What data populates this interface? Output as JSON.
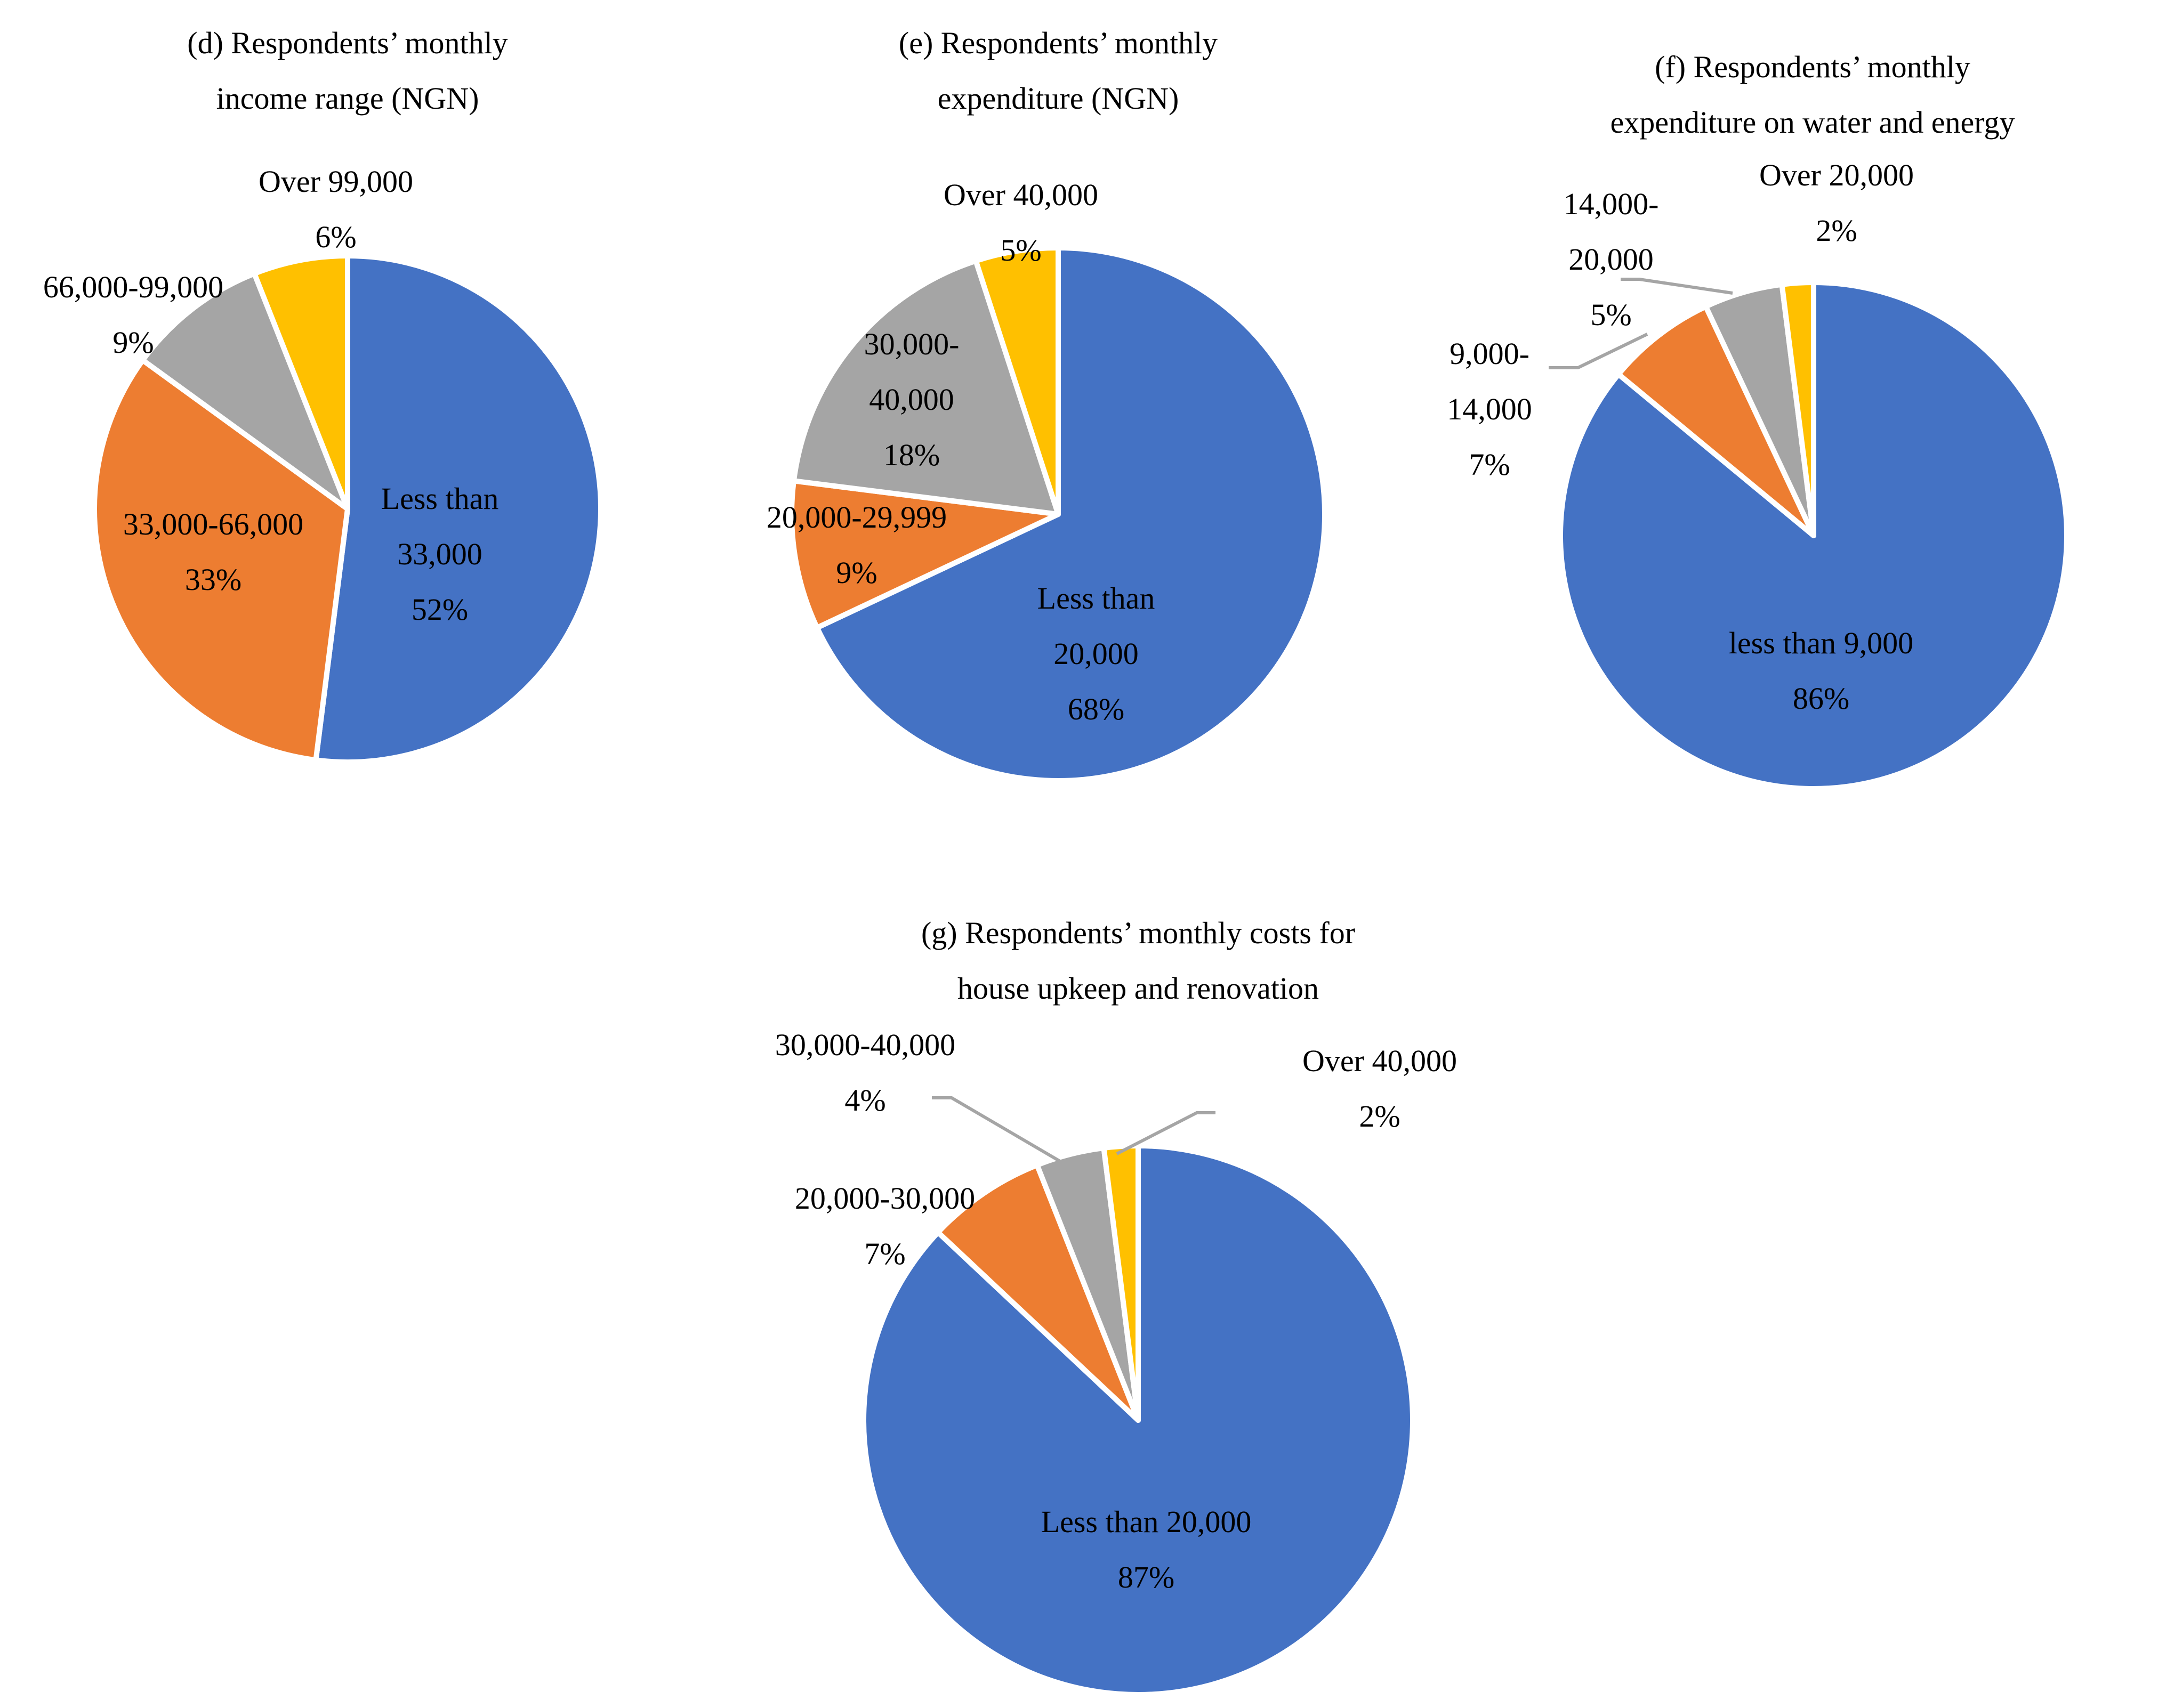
{
  "chart_data": [
    {
      "id": "d",
      "type": "pie",
      "title_lines": [
        "(d) Respondents’ monthly",
        "income range (NGN)"
      ],
      "slices": [
        {
          "label_lines": [
            "Less than",
            "33,000"
          ],
          "pct_label": "52%",
          "value": 52,
          "color": "#4472C4"
        },
        {
          "label_lines": [
            "33,000-66,000"
          ],
          "pct_label": "33%",
          "value": 33,
          "color": "#ED7D31"
        },
        {
          "label_lines": [
            "66,000-99,000"
          ],
          "pct_label": "9%",
          "value": 9,
          "color": "#A5A5A5"
        },
        {
          "label_lines": [
            "Over 99,000"
          ],
          "pct_label": "6%",
          "value": 6,
          "color": "#FFC000"
        }
      ]
    },
    {
      "id": "e",
      "type": "pie",
      "title_lines": [
        "(e) Respondents’ monthly",
        "expenditure (NGN)"
      ],
      "slices": [
        {
          "label_lines": [
            "Less than",
            "20,000"
          ],
          "pct_label": "68%",
          "value": 68,
          "color": "#4472C4"
        },
        {
          "label_lines": [
            "20,000-29,999"
          ],
          "pct_label": "9%",
          "value": 9,
          "color": "#ED7D31"
        },
        {
          "label_lines": [
            "30,000-",
            "40,000"
          ],
          "pct_label": "18%",
          "value": 18,
          "color": "#A5A5A5"
        },
        {
          "label_lines": [
            "Over 40,000"
          ],
          "pct_label": "5%",
          "value": 5,
          "color": "#FFC000"
        }
      ]
    },
    {
      "id": "f",
      "type": "pie",
      "title_lines": [
        "(f) Respondents’ monthly",
        "expenditure on water and energy"
      ],
      "slices": [
        {
          "label_lines": [
            "less than 9,000"
          ],
          "pct_label": "86%",
          "value": 86,
          "color": "#4472C4"
        },
        {
          "label_lines": [
            "9,000-",
            "14,000"
          ],
          "pct_label": "7%",
          "value": 7,
          "color": "#ED7D31"
        },
        {
          "label_lines": [
            "14,000-",
            "20,000"
          ],
          "pct_label": "5%",
          "value": 5,
          "color": "#A5A5A5"
        },
        {
          "label_lines": [
            "Over 20,000"
          ],
          "pct_label": "2%",
          "value": 2,
          "color": "#FFC000"
        }
      ]
    },
    {
      "id": "g",
      "type": "pie",
      "title_lines": [
        "(g) Respondents’ monthly costs for",
        "house upkeep and renovation"
      ],
      "slices": [
        {
          "label_lines": [
            "Less than 20,000"
          ],
          "pct_label": "87%",
          "value": 87,
          "color": "#4472C4"
        },
        {
          "label_lines": [
            "20,000-30,000"
          ],
          "pct_label": "7%",
          "value": 7,
          "color": "#ED7D31"
        },
        {
          "label_lines": [
            "30,000-40,000"
          ],
          "pct_label": "4%",
          "value": 4,
          "color": "#A5A5A5"
        },
        {
          "label_lines": [
            "Over 40,000"
          ],
          "pct_label": "2%",
          "value": 2,
          "color": "#FFC000"
        }
      ]
    }
  ]
}
